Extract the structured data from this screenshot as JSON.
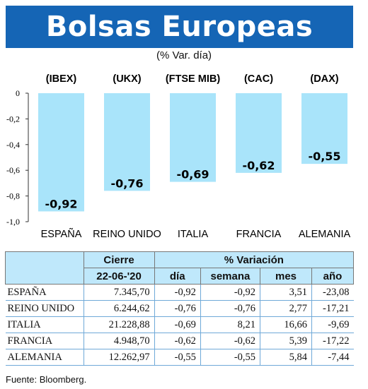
{
  "title": "Bolsas Europeas",
  "subtitle": "(% Var. día)",
  "chart_data": {
    "type": "bar",
    "categories": [
      "ESPAÑA",
      "REINO UNIDO",
      "ITALIA",
      "FRANCIA",
      "ALEMANIA"
    ],
    "indices": [
      "(IBEX)",
      "(UKX)",
      "(FTSE MIB)",
      "(CAC)",
      "(DAX)"
    ],
    "values": [
      -0.92,
      -0.76,
      -0.69,
      -0.62,
      -0.55
    ],
    "labels": [
      "-0,92",
      "-0,76",
      "-0,69",
      "-0,62",
      "-0,55"
    ],
    "ylim": [
      -1.0,
      0
    ],
    "yticks": [
      0,
      -0.2,
      -0.4,
      -0.6,
      -0.8,
      -1.0
    ],
    "ytick_labels": [
      "0",
      "-0,2",
      "-0,4",
      "-0,6",
      "-0,8",
      "-1,0"
    ],
    "bar_color": "#a9e4fa"
  },
  "table": {
    "header_cierre": "Cierre",
    "header_variacion": "% Variación",
    "date": "22-06-'20",
    "columns": [
      "día",
      "semana",
      "mes",
      "año"
    ],
    "rows": [
      {
        "country": "ESPAÑA",
        "cierre": "7.345,70",
        "dia": "-0,92",
        "semana": "-0,92",
        "mes": "3,51",
        "ano": "-23,08"
      },
      {
        "country": "REINO UNIDO",
        "cierre": "6.244,62",
        "dia": "-0,76",
        "semana": "-0,76",
        "mes": "2,77",
        "ano": "-17,21"
      },
      {
        "country": "ITALIA",
        "cierre": "21.228,88",
        "dia": "-0,69",
        "semana": "8,21",
        "mes": "16,66",
        "ano": "-9,69"
      },
      {
        "country": "FRANCIA",
        "cierre": "4.948,70",
        "dia": "-0,62",
        "semana": "-0,62",
        "mes": "5,39",
        "ano": "-17,22"
      },
      {
        "country": "ALEMANIA",
        "cierre": "12.262,97",
        "dia": "-0,55",
        "semana": "-0,55",
        "mes": "5,84",
        "ano": "-7,44"
      }
    ]
  },
  "source": "Fuente: Bloomberg."
}
